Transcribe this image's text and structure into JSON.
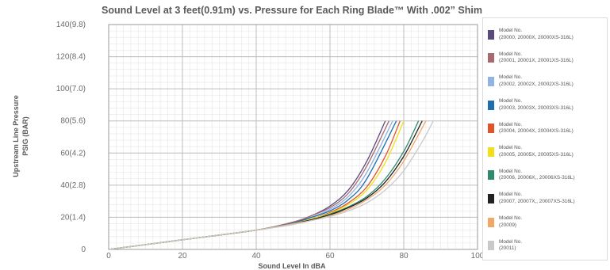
{
  "chart_data": {
    "type": "line",
    "title": "Sound Level at 3 feet(0.91m) vs. Pressure for Each Ring Blade™ With .002” Shim",
    "xlabel": "Sound Level In dBA",
    "ylabel_lines": [
      "Upstream Line Pressure",
      "PSIG (BAR)"
    ],
    "xlim": [
      0,
      100
    ],
    "ylim": [
      0,
      140
    ],
    "x_ticks": [
      0,
      20,
      40,
      60,
      80,
      100
    ],
    "x_tick_labels": [
      "0",
      "20",
      "40",
      "60",
      "80",
      "100"
    ],
    "y_ticks": [
      0,
      20,
      40,
      60,
      80,
      100,
      120,
      140
    ],
    "y_tick_labels": [
      "0",
      "20(1.4)",
      "40(2.8)",
      "60(4.2)",
      "80(5.6)",
      "100(7.0)",
      "120(8.4)",
      "140(9.8)"
    ],
    "grid": true,
    "legend_position": "right",
    "series": [
      {
        "name_line1": "Model No.",
        "name_line2": "(20000, 20000X, 20000XS-316L)",
        "color": "#5b4a7e",
        "x": [
          0,
          20,
          40,
          50,
          55,
          60,
          65,
          70,
          75
        ],
        "y": [
          0,
          6,
          12,
          17,
          21,
          27,
          37,
          55,
          80
        ]
      },
      {
        "name_line1": "Model No.",
        "name_line2": "(20001, 20001X, 20001XS-316L)",
        "color": "#a86a70",
        "x": [
          0,
          20,
          40,
          50,
          55,
          60,
          65,
          70,
          76
        ],
        "y": [
          0,
          6,
          12,
          17,
          21,
          26,
          35,
          52,
          80
        ]
      },
      {
        "name_line1": "Model No.",
        "name_line2": "(20002, 20002X, 20002XS-316L)",
        "color": "#8fb4e3",
        "x": [
          0,
          20,
          40,
          50,
          55,
          60,
          65,
          70,
          77
        ],
        "y": [
          0,
          6,
          12,
          16.5,
          20,
          25,
          33,
          48,
          80
        ]
      },
      {
        "name_line1": "Model No.",
        "name_line2": "(20003, 20003X, 20003XS-316L)",
        "color": "#1f6fae",
        "x": [
          0,
          20,
          40,
          50,
          55,
          60,
          65,
          70,
          78
        ],
        "y": [
          0,
          6,
          12,
          16.5,
          20,
          24,
          31,
          44,
          80
        ]
      },
      {
        "name_line1": "Model No.",
        "name_line2": "(20004, 20004X, 20004XS-316L)",
        "color": "#e0542a",
        "x": [
          0,
          20,
          40,
          50,
          55,
          60,
          65,
          70,
          75,
          79
        ],
        "y": [
          0,
          6,
          12,
          16,
          19,
          23,
          29,
          39,
          58,
          80
        ]
      },
      {
        "name_line1": "Model No.",
        "name_line2": "(20005, 20005X, 20005XS-316L)",
        "color": "#f2de1b",
        "x": [
          0,
          20,
          40,
          50,
          55,
          60,
          65,
          70,
          75,
          80
        ],
        "y": [
          0,
          6,
          12,
          16,
          19,
          22.5,
          28,
          37,
          54,
          80
        ]
      },
      {
        "name_line1": "Model No.",
        "name_line2": "(20006, 20006X,, 20006XS-316L)",
        "color": "#2e8b6e",
        "x": [
          0,
          20,
          40,
          50,
          55,
          60,
          65,
          70,
          75,
          80,
          84
        ],
        "y": [
          0,
          6,
          12,
          16,
          18.5,
          22,
          26.5,
          33,
          44,
          61,
          80
        ]
      },
      {
        "name_line1": "Model No.",
        "name_line2": "(20007, 20007X,, 20007XS-316L)",
        "color": "#222222",
        "x": [
          0,
          20,
          40,
          50,
          55,
          60,
          65,
          70,
          75,
          80,
          85
        ],
        "y": [
          0,
          6,
          12,
          16,
          18.5,
          21.5,
          26,
          32,
          42,
          58,
          80
        ]
      },
      {
        "name_line1": "Model No.",
        "name_line2": "(20009)",
        "color": "#f0a868",
        "x": [
          0,
          20,
          40,
          50,
          55,
          60,
          65,
          70,
          75,
          80,
          86
        ],
        "y": [
          0,
          6,
          12,
          16,
          18,
          21,
          25,
          31,
          40,
          55,
          80
        ]
      },
      {
        "name_line1": "Model No.",
        "name_line2": "(20011)",
        "color": "#c9c9c9",
        "x": [
          0,
          20,
          40,
          50,
          55,
          60,
          65,
          70,
          75,
          80,
          85,
          88
        ],
        "y": [
          0,
          6,
          12,
          15.5,
          18,
          20.5,
          24,
          29,
          37,
          49,
          67,
          80
        ]
      }
    ]
  }
}
